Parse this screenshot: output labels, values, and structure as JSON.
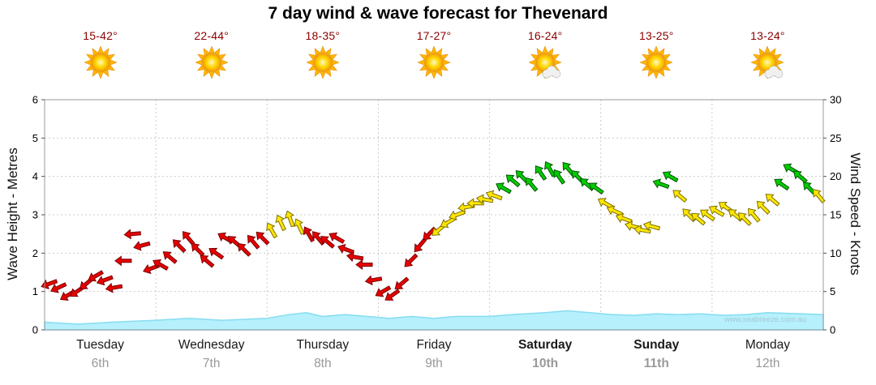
{
  "title": "7 day wind & wave forecast for Thevenard",
  "watermark": "www.seabreeze.com.au",
  "day_headers": [
    {
      "temp": "15-42°",
      "icon": "sun"
    },
    {
      "temp": "22-44°",
      "icon": "sun"
    },
    {
      "temp": "18-35°",
      "icon": "sun"
    },
    {
      "temp": "17-27°",
      "icon": "sun"
    },
    {
      "temp": "16-24°",
      "icon": "sun-cloud"
    },
    {
      "temp": "13-25°",
      "icon": "sun"
    },
    {
      "temp": "13-24°",
      "icon": "sun-cloud"
    }
  ],
  "x_axis": {
    "days": [
      {
        "name": "Tuesday",
        "date": "6th",
        "bold": false
      },
      {
        "name": "Wednesday",
        "date": "7th",
        "bold": false
      },
      {
        "name": "Thursday",
        "date": "8th",
        "bold": false
      },
      {
        "name": "Friday",
        "date": "9th",
        "bold": false
      },
      {
        "name": "Saturday",
        "date": "10th",
        "bold": true
      },
      {
        "name": "Sunday",
        "date": "11th",
        "bold": true
      },
      {
        "name": "Monday",
        "date": "12th",
        "bold": false
      }
    ]
  },
  "y_left": {
    "title": "Wave Height - Metres",
    "min": 0,
    "max": 6,
    "ticks": [
      0,
      1,
      2,
      3,
      4,
      5,
      6
    ]
  },
  "y_right": {
    "title": "Wind Speed - Knots",
    "min": 0,
    "max": 30,
    "ticks": [
      0,
      5,
      10,
      15,
      20,
      25,
      30
    ]
  },
  "chart_data": [
    {
      "type": "area",
      "name": "Wave Height",
      "axis": "left",
      "unit": "metres",
      "ylim": [
        0,
        6
      ],
      "x_unit": "days from Tuesday 00:00",
      "x": [
        0,
        0.3,
        0.6,
        1.0,
        1.3,
        1.6,
        2.0,
        2.2,
        2.35,
        2.5,
        2.7,
        2.9,
        3.1,
        3.3,
        3.5,
        3.7,
        4.0,
        4.2,
        4.5,
        4.7,
        4.9,
        5.1,
        5.3,
        5.5,
        5.7,
        5.9,
        6.1,
        6.3,
        6.5,
        6.8,
        7.0
      ],
      "values": [
        0.2,
        0.15,
        0.2,
        0.25,
        0.3,
        0.25,
        0.3,
        0.4,
        0.45,
        0.35,
        0.4,
        0.35,
        0.3,
        0.35,
        0.3,
        0.35,
        0.35,
        0.4,
        0.45,
        0.5,
        0.45,
        0.4,
        0.38,
        0.42,
        0.4,
        0.42,
        0.38,
        0.4,
        0.45,
        0.42,
        0.4
      ],
      "fill": "#b5f0fc",
      "stroke": "#86dcf0"
    },
    {
      "type": "scatter",
      "name": "Wind Speed",
      "marker": "direction-arrow",
      "axis": "right",
      "unit": "knots",
      "ylim": [
        0,
        30
      ],
      "x_unit": "days from Tuesday 00:00",
      "x_start": 0.04,
      "x_step": 0.08333,
      "values": [
        6,
        5.5,
        4.5,
        5,
        6,
        7,
        6.5,
        5.5,
        9,
        12.5,
        11,
        8,
        8.5,
        9.5,
        11,
        12,
        10.5,
        9,
        10,
        12,
        11.5,
        10.5,
        11.5,
        12,
        13,
        14,
        14.5,
        13.5,
        12.5,
        12,
        11.5,
        12,
        10.5,
        9.5,
        8.5,
        6.5,
        5,
        4.5,
        6,
        9,
        11,
        12.5,
        13,
        14,
        15,
        16,
        16.5,
        17,
        17.5,
        18.5,
        19.5,
        20,
        19,
        20.5,
        21,
        20,
        21,
        20,
        19,
        18.5,
        16.5,
        15.5,
        14.5,
        13.5,
        13,
        13.5,
        19,
        20,
        17.5,
        15,
        14.5,
        15,
        15.5,
        16,
        15,
        14.5,
        15,
        16,
        17,
        19,
        21,
        20,
        18.5,
        17.5
      ],
      "directions_deg": [
        250,
        245,
        240,
        235,
        230,
        240,
        250,
        260,
        270,
        265,
        255,
        250,
        300,
        310,
        315,
        320,
        315,
        310,
        305,
        300,
        310,
        315,
        320,
        315,
        330,
        335,
        340,
        335,
        330,
        320,
        310,
        300,
        290,
        280,
        270,
        260,
        240,
        235,
        230,
        225,
        220,
        225,
        230,
        240,
        250,
        260,
        270,
        280,
        290,
        300,
        310,
        315,
        320,
        325,
        330,
        325,
        320,
        315,
        310,
        305,
        300,
        295,
        290,
        285,
        280,
        285,
        290,
        300,
        310,
        315,
        310,
        305,
        300,
        305,
        310,
        315,
        320,
        315,
        310,
        305,
        300,
        310,
        315,
        320
      ],
      "thresholds": {
        "yellow_min": 13,
        "green_min": 18
      },
      "colors": {
        "red": {
          "fill": "#e60000",
          "stroke": "#7a0000"
        },
        "yellow": {
          "fill": "#ffe600",
          "stroke": "#7d7000"
        },
        "green": {
          "fill": "#00cc00",
          "stroke": "#005500"
        }
      }
    }
  ],
  "style": {
    "grid_color": "#cccccc",
    "axis_color": "#999999",
    "date_color": "#999999",
    "watermark_color": "#a6c8d4"
  }
}
